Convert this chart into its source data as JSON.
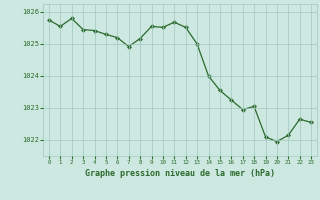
{
  "x": [
    0,
    1,
    2,
    3,
    4,
    5,
    6,
    7,
    8,
    9,
    10,
    11,
    12,
    13,
    14,
    15,
    16,
    17,
    18,
    19,
    20,
    21,
    22,
    23
  ],
  "y": [
    1025.75,
    1025.55,
    1025.8,
    1025.45,
    1025.42,
    1025.3,
    1025.2,
    1024.92,
    1025.17,
    1025.55,
    1025.52,
    1025.68,
    1025.52,
    1025.0,
    1024.0,
    1023.55,
    1023.25,
    1022.95,
    1023.05,
    1022.1,
    1021.95,
    1022.15,
    1022.65,
    1022.55
  ],
  "line_color": "#2d6a2d",
  "marker_color": "#2d6a2d",
  "bg_color": "#cce8e0",
  "grid_color": "#a0c8c0",
  "xlabel": "Graphe pression niveau de la mer (hPa)",
  "xlabel_color": "#2d6a2d",
  "tick_color": "#2d6a2d",
  "ylim_min": 1021.5,
  "ylim_max": 1026.25,
  "yticks": [
    1022,
    1023,
    1024,
    1025,
    1026
  ],
  "xticks": [
    0,
    1,
    2,
    3,
    4,
    5,
    6,
    7,
    8,
    9,
    10,
    11,
    12,
    13,
    14,
    15,
    16,
    17,
    18,
    19,
    20,
    21,
    22,
    23
  ]
}
